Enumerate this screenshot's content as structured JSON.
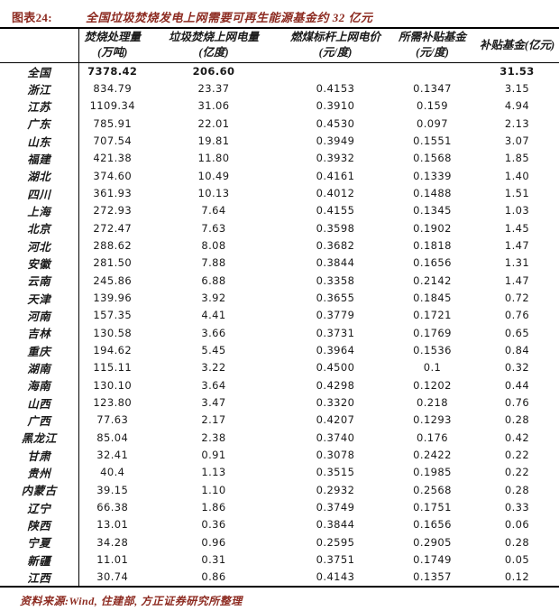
{
  "figure": {
    "number": "图表24:",
    "title": "全国垃圾焚烧发电上网需要可再生能源基金约 32 亿元"
  },
  "table": {
    "columns": [
      {
        "line1": "焚烧处理量",
        "line2": "(万吨)"
      },
      {
        "line1": "垃圾焚烧上网电量",
        "line2": "(亿度)"
      },
      {
        "line1": "燃煤标杆上网电价",
        "line2": "(元/度)"
      },
      {
        "line1": "所需补贴基金",
        "line2": "(元/度)"
      },
      {
        "line1": "补贴基金(亿元)",
        "line2": ""
      }
    ],
    "rows": [
      {
        "region": "全国",
        "values": [
          "7378.42",
          "206.60",
          "",
          "",
          "31.53"
        ],
        "bold": true
      },
      {
        "region": "浙江",
        "values": [
          "834.79",
          "23.37",
          "0.4153",
          "0.1347",
          "3.15"
        ]
      },
      {
        "region": "江苏",
        "values": [
          "1109.34",
          "31.06",
          "0.3910",
          "0.159",
          "4.94"
        ]
      },
      {
        "region": "广东",
        "values": [
          "785.91",
          "22.01",
          "0.4530",
          "0.097",
          "2.13"
        ]
      },
      {
        "region": "山东",
        "values": [
          "707.54",
          "19.81",
          "0.3949",
          "0.1551",
          "3.07"
        ]
      },
      {
        "region": "福建",
        "values": [
          "421.38",
          "11.80",
          "0.3932",
          "0.1568",
          "1.85"
        ]
      },
      {
        "region": "湖北",
        "values": [
          "374.60",
          "10.49",
          "0.4161",
          "0.1339",
          "1.40"
        ]
      },
      {
        "region": "四川",
        "values": [
          "361.93",
          "10.13",
          "0.4012",
          "0.1488",
          "1.51"
        ]
      },
      {
        "region": "上海",
        "values": [
          "272.93",
          "7.64",
          "0.4155",
          "0.1345",
          "1.03"
        ]
      },
      {
        "region": "北京",
        "values": [
          "272.47",
          "7.63",
          "0.3598",
          "0.1902",
          "1.45"
        ]
      },
      {
        "region": "河北",
        "values": [
          "288.62",
          "8.08",
          "0.3682",
          "0.1818",
          "1.47"
        ]
      },
      {
        "region": "安徽",
        "values": [
          "281.50",
          "7.88",
          "0.3844",
          "0.1656",
          "1.31"
        ]
      },
      {
        "region": "云南",
        "values": [
          "245.86",
          "6.88",
          "0.3358",
          "0.2142",
          "1.47"
        ]
      },
      {
        "region": "天津",
        "values": [
          "139.96",
          "3.92",
          "0.3655",
          "0.1845",
          "0.72"
        ]
      },
      {
        "region": "河南",
        "values": [
          "157.35",
          "4.41",
          "0.3779",
          "0.1721",
          "0.76"
        ]
      },
      {
        "region": "吉林",
        "values": [
          "130.58",
          "3.66",
          "0.3731",
          "0.1769",
          "0.65"
        ]
      },
      {
        "region": "重庆",
        "values": [
          "194.62",
          "5.45",
          "0.3964",
          "0.1536",
          "0.84"
        ]
      },
      {
        "region": "湖南",
        "values": [
          "115.11",
          "3.22",
          "0.4500",
          "0.1",
          "0.32"
        ]
      },
      {
        "region": "海南",
        "values": [
          "130.10",
          "3.64",
          "0.4298",
          "0.1202",
          "0.44"
        ]
      },
      {
        "region": "山西",
        "values": [
          "123.80",
          "3.47",
          "0.3320",
          "0.218",
          "0.76"
        ]
      },
      {
        "region": "广西",
        "values": [
          "77.63",
          "2.17",
          "0.4207",
          "0.1293",
          "0.28"
        ]
      },
      {
        "region": "黑龙江",
        "values": [
          "85.04",
          "2.38",
          "0.3740",
          "0.176",
          "0.42"
        ]
      },
      {
        "region": "甘肃",
        "values": [
          "32.41",
          "0.91",
          "0.3078",
          "0.2422",
          "0.22"
        ]
      },
      {
        "region": "贵州",
        "values": [
          "40.4",
          "1.13",
          "0.3515",
          "0.1985",
          "0.22"
        ]
      },
      {
        "region": "内蒙古",
        "values": [
          "39.15",
          "1.10",
          "0.2932",
          "0.2568",
          "0.28"
        ]
      },
      {
        "region": "辽宁",
        "values": [
          "66.38",
          "1.86",
          "0.3749",
          "0.1751",
          "0.33"
        ]
      },
      {
        "region": "陕西",
        "values": [
          "13.01",
          "0.36",
          "0.3844",
          "0.1656",
          "0.06"
        ]
      },
      {
        "region": "宁夏",
        "values": [
          "34.28",
          "0.96",
          "0.2595",
          "0.2905",
          "0.28"
        ]
      },
      {
        "region": "新疆",
        "values": [
          "11.01",
          "0.31",
          "0.3751",
          "0.1749",
          "0.05"
        ]
      },
      {
        "region": "江西",
        "values": [
          "30.74",
          "0.86",
          "0.4143",
          "0.1357",
          "0.12"
        ]
      }
    ]
  },
  "footer": {
    "source": "资料来源:Wind, 住建部, 方正证券研究所整理"
  },
  "colors": {
    "accent": "#8d2b21",
    "text": "#1a1a1a",
    "border": "#000000"
  }
}
